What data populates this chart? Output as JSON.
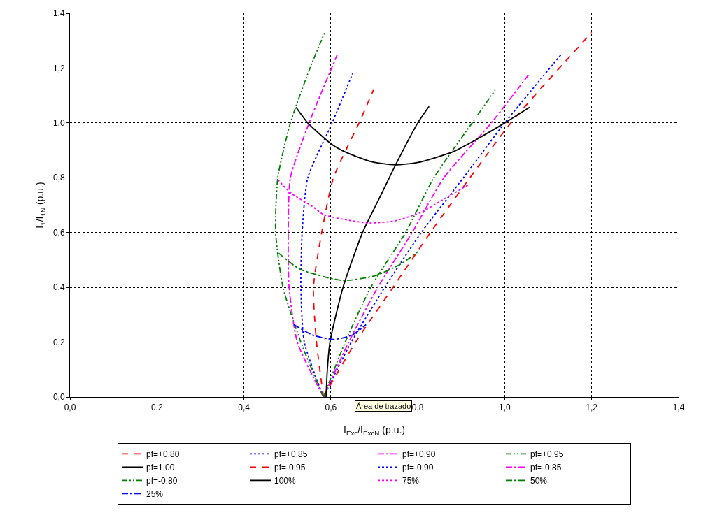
{
  "chart_data": {
    "type": "line",
    "xlabel": "I$_{Exc}$/I$_{ExcN}$ (p.u.)",
    "ylabel": "I$_{1}$/I$_{1N}$ (p.u.)",
    "xlim": [
      0,
      1.4
    ],
    "ylim": [
      0,
      1.4
    ],
    "xticks": [
      {
        "value": 0,
        "label": "0,0"
      },
      {
        "value": 0.2,
        "label": "0,2"
      },
      {
        "value": 0.4,
        "label": "0,4"
      },
      {
        "value": 0.6,
        "label": "0,6"
      },
      {
        "value": 0.8,
        "label": "0,8"
      },
      {
        "value": 1,
        "label": "1,0"
      },
      {
        "value": 1.2,
        "label": "1,2"
      },
      {
        "value": 1.4,
        "label": "1,4"
      }
    ],
    "yticks": [
      {
        "value": 0,
        "label": "0,0"
      },
      {
        "value": 0.2,
        "label": "0,2"
      },
      {
        "value": 0.4,
        "label": "0,4"
      },
      {
        "value": 0.6,
        "label": "0,6"
      },
      {
        "value": 0.8,
        "label": "0,8"
      },
      {
        "value": 1,
        "label": "1,0"
      },
      {
        "value": 1.2,
        "label": "1,2"
      },
      {
        "value": 1.4,
        "label": "1,4"
      }
    ],
    "grid": true,
    "legend": "bottom",
    "marker": "none",
    "annotations": [
      "Área de trazado"
    ],
    "series": [
      {
        "name": "pf=+0.80",
        "color": "#ff0000",
        "line_style": "dashed",
        "x": [
          0.583,
          0.657,
          0.743,
          0.829,
          0.92,
          1.014,
          1.2
        ],
        "values": [
          0,
          0.2,
          0.4,
          0.6,
          0.8,
          1.0,
          1.33
        ]
      },
      {
        "name": "pf=+0.85",
        "color": "#0000ff",
        "line_style": "dotted",
        "x": [
          0.583,
          0.647,
          0.724,
          0.808,
          0.905,
          1.0,
          1.13
        ],
        "values": [
          0,
          0.2,
          0.4,
          0.6,
          0.8,
          1.0,
          1.25
        ]
      },
      {
        "name": "pf=+0.90",
        "color": "#ff00ff",
        "line_style": "dashdot",
        "x": [
          0.583,
          0.641,
          0.708,
          0.787,
          0.86,
          0.969,
          1.057
        ],
        "values": [
          0,
          0.2,
          0.4,
          0.6,
          0.8,
          1.0,
          1.18
        ]
      },
      {
        "name": "pf=+0.95",
        "color": "#008000",
        "line_style": "dashdotdot",
        "x": [
          0.583,
          0.633,
          0.692,
          0.772,
          0.837,
          0.925,
          0.978
        ],
        "values": [
          0,
          0.2,
          0.4,
          0.6,
          0.8,
          1.0,
          1.12
        ]
      },
      {
        "name": "pf=1.00",
        "color": "#000000",
        "line_style": "solid",
        "x": [
          0.589,
          0.592,
          0.598,
          0.628,
          0.673,
          0.71,
          0.75,
          0.8,
          0.826
        ],
        "values": [
          0,
          0.1,
          0.2,
          0.4,
          0.6,
          0.72,
          0.85,
          1.0,
          1.06
        ]
      },
      {
        "name": "pf=-0.95",
        "color": "#ff0000",
        "line_style": "dashed",
        "x": [
          0.583,
          0.567,
          0.56,
          0.579,
          0.606,
          0.665,
          0.698
        ],
        "values": [
          0,
          0.2,
          0.4,
          0.6,
          0.8,
          1.0,
          1.12
        ]
      },
      {
        "name": "pf=-0.90",
        "color": "#0000ff",
        "line_style": "dotted",
        "x": [
          0.583,
          0.539,
          0.531,
          0.534,
          0.547,
          0.603,
          0.65
        ],
        "values": [
          0,
          0.2,
          0.4,
          0.6,
          0.8,
          1.0,
          1.18
        ]
      },
      {
        "name": "pf=-0.85",
        "color": "#ff00ff",
        "line_style": "dashdot",
        "x": [
          0.583,
          0.523,
          0.504,
          0.502,
          0.507,
          0.55,
          0.615
        ],
        "values": [
          0,
          0.2,
          0.4,
          0.6,
          0.8,
          1.0,
          1.25
        ]
      },
      {
        "name": "pf=-0.80",
        "color": "#008000",
        "line_style": "dashdotdot",
        "x": [
          0.583,
          0.531,
          0.49,
          0.473,
          0.478,
          0.507,
          0.552,
          0.586
        ],
        "values": [
          0,
          0.2,
          0.4,
          0.6,
          0.8,
          1.0,
          1.2,
          1.33
        ]
      },
      {
        "name": "100%",
        "color": "#000000",
        "line_style": "solid",
        "x": [
          0.52,
          0.547,
          0.602,
          0.633,
          0.692,
          0.748,
          0.801,
          0.88,
          0.933,
          1.0,
          1.057
        ],
        "values": [
          1.057,
          1.0,
          0.922,
          0.894,
          0.859,
          0.847,
          0.856,
          0.894,
          0.938,
          1.0,
          1.057
        ]
      },
      {
        "name": "75%",
        "color": "#ff00ff",
        "line_style": "dotted",
        "x": [
          0.478,
          0.51,
          0.558,
          0.584,
          0.684,
          0.745,
          0.805,
          0.874,
          0.917
        ],
        "values": [
          0.793,
          0.742,
          0.695,
          0.665,
          0.635,
          0.642,
          0.672,
          0.735,
          0.775
        ]
      },
      {
        "name": "50%",
        "color": "#008000",
        "line_style": "dashdot",
        "x": [
          0.48,
          0.528,
          0.628,
          0.703,
          0.761,
          0.8
        ],
        "values": [
          0.525,
          0.467,
          0.425,
          0.443,
          0.485,
          0.53
        ]
      },
      {
        "name": "25%",
        "color": "#0000ff",
        "line_style": "dashdot",
        "x": [
          0.515,
          0.558,
          0.607,
          0.649,
          0.681
        ],
        "values": [
          0.264,
          0.226,
          0.21,
          0.226,
          0.264
        ]
      }
    ]
  }
}
